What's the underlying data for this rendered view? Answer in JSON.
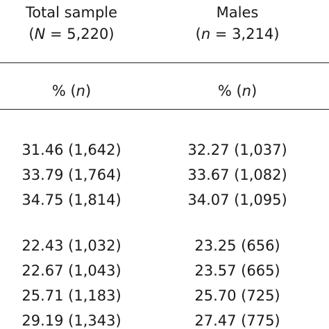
{
  "columns": [
    {
      "title": "Total sample",
      "count_prefix": "(",
      "count_symbol": "N",
      "count_value": " = 5,220)",
      "unit_prefix": "% (",
      "unit_symbol": "n",
      "unit_suffix": ")"
    },
    {
      "title": "Males",
      "count_prefix": "(",
      "count_symbol": "n",
      "count_value": " = 3,214)",
      "unit_prefix": "% (",
      "unit_symbol": "n",
      "unit_suffix": ")"
    }
  ],
  "groups": [
    {
      "rows": [
        [
          "31.46 (1,642)",
          "32.27 (1,037)"
        ],
        [
          "33.79 (1,764)",
          "33.67 (1,082)"
        ],
        [
          "34.75 (1,814)",
          "34.07 (1,095)"
        ]
      ]
    },
    {
      "rows": [
        [
          "22.43 (1,032)",
          "23.25 (656)"
        ],
        [
          "22.67 (1,043)",
          "23.57 (665)"
        ],
        [
          "25.71 (1,183)",
          "25.70 (725)"
        ],
        [
          "29.19 (1,343)",
          "27.47 (775)"
        ]
      ]
    }
  ]
}
